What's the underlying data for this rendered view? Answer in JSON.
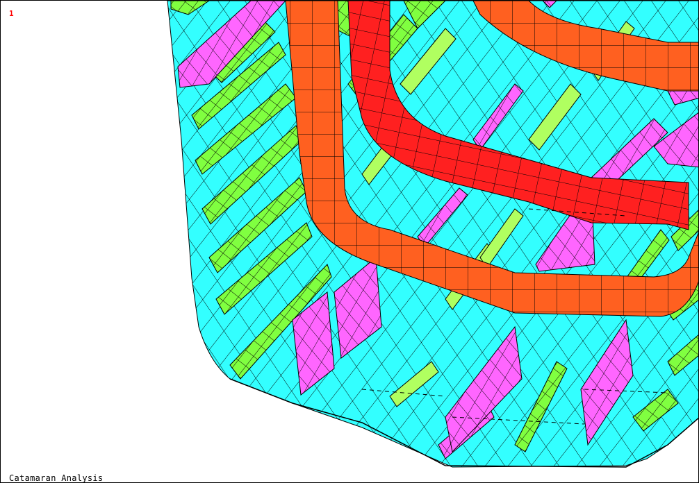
{
  "viewport": {
    "window_number": "1",
    "title": "Catamaran Analysis"
  },
  "colors": {
    "background": "#ffffff",
    "shell": "#33ffff",
    "stiffener_green": "#80ff40",
    "stiffener_light_green": "#b0ff60",
    "magenta": "#ff66ff",
    "orange": "#ff6020",
    "red": "#ff2020",
    "edge": "#000000",
    "window_number": "#ff0000"
  },
  "legend_icons": [
    "fe-mesh-icon"
  ]
}
